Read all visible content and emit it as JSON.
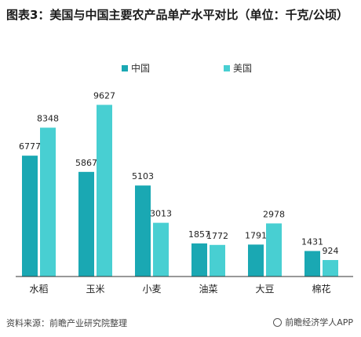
{
  "title": "图表3：美国与中国主要农产品单产水平对比（单位：千克/公顷）",
  "colors": {
    "china": "#1aa8b3",
    "usa": "#48cfd2",
    "axis": "#333333"
  },
  "chart_data": {
    "type": "bar",
    "categories": [
      "水稻",
      "玉米",
      "小麦",
      "油菜",
      "大豆",
      "棉花"
    ],
    "series": [
      {
        "name": "中国",
        "values": [
          6777,
          5867,
          5103,
          1857,
          1791,
          1431
        ]
      },
      {
        "name": "美国",
        "values": [
          8348,
          9627,
          3013,
          1772,
          2978,
          924
        ]
      }
    ],
    "ylim": [
      0,
      10000
    ],
    "legend": "top",
    "grid": false
  },
  "footer": {
    "source": "资料来源：前瞻产业研究院整理",
    "brand": "前瞻经济学人APP"
  }
}
